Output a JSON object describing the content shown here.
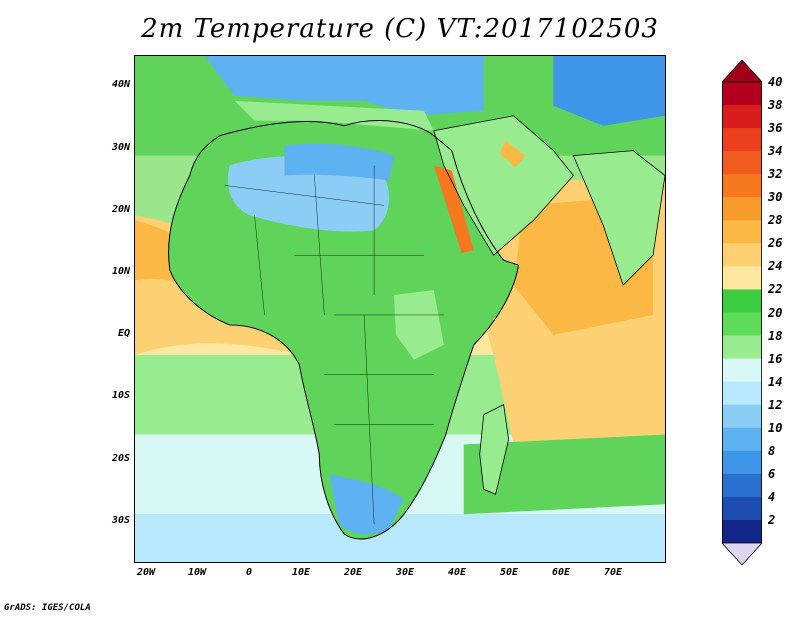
{
  "title": "2m Temperature (C) VT:2017102503",
  "credit": "GrADS: IGES/COLA",
  "map": {
    "region": "Africa",
    "variable": "2m Temperature",
    "units": "C",
    "valid_time": "2017102503"
  },
  "axes": {
    "lat_labels": [
      "40N",
      "30N",
      "20N",
      "10N",
      "EQ",
      "10S",
      "20S",
      "30S"
    ],
    "lon_labels": [
      "20W",
      "10W",
      "0",
      "10E",
      "20E",
      "30E",
      "40E",
      "50E",
      "60E",
      "70E"
    ]
  },
  "colorbar": {
    "labels": [
      "40",
      "38",
      "36",
      "34",
      "32",
      "30",
      "28",
      "26",
      "24",
      "22",
      "20",
      "18",
      "16",
      "14",
      "12",
      "10",
      "8",
      "6",
      "4",
      "2"
    ],
    "colors": [
      "#b3001e",
      "#d81d1d",
      "#ec3f1d",
      "#f25b20",
      "#f5781f",
      "#f79b2a",
      "#fbb845",
      "#fdd074",
      "#fde7a1",
      "#3ccc41",
      "#5fdb5a",
      "#98ec8f",
      "#d8f8f6",
      "#b8e8fb",
      "#8ccdf6",
      "#5fb2f1",
      "#3f95e8",
      "#2a71cf",
      "#1e4db1",
      "#132788"
    ],
    "bottom_arrow_color": "#dcd6f0",
    "top_arrow_color": "#a00017"
  }
}
